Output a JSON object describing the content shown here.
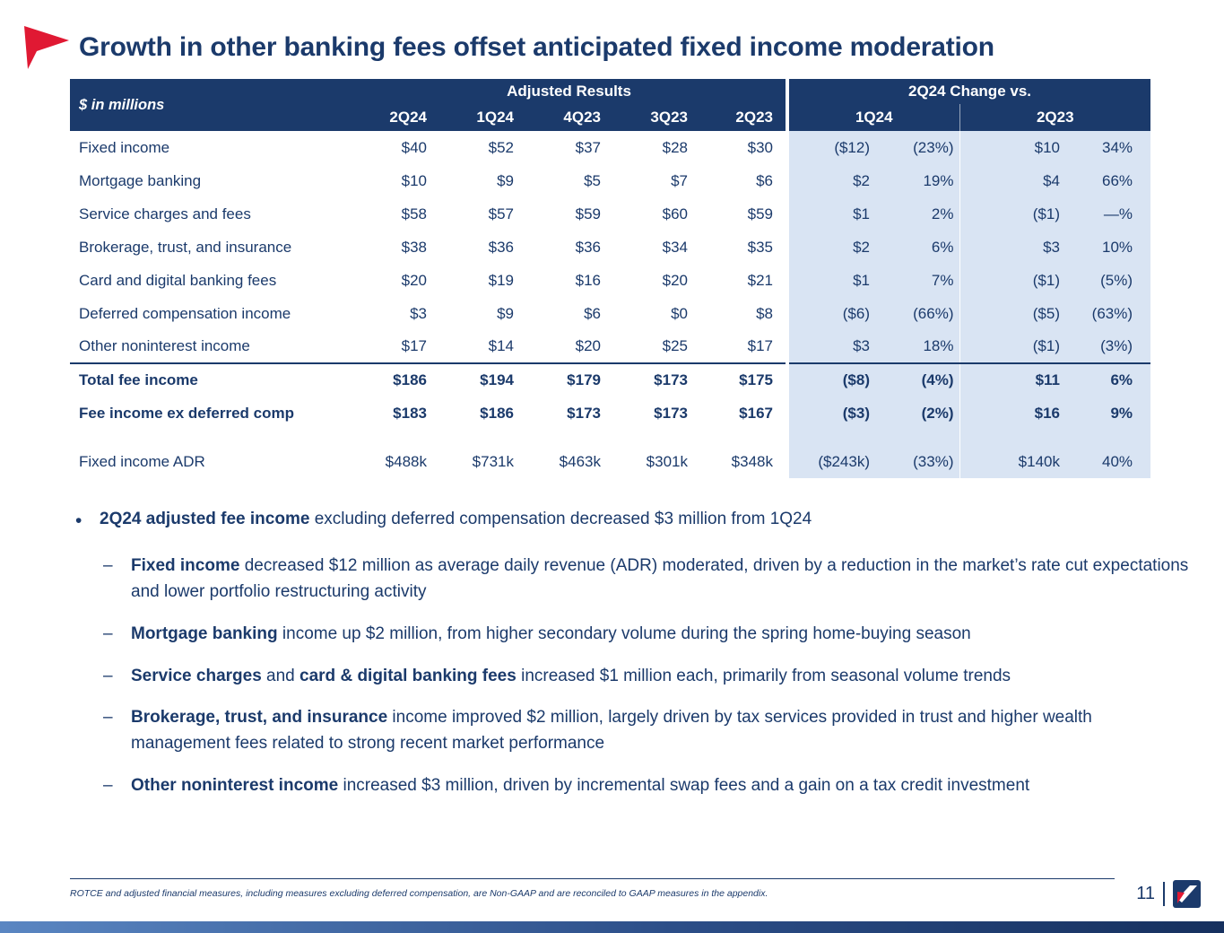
{
  "slide": {
    "title": "Growth in other banking fees offset anticipated fixed income moderation",
    "page_number": "11",
    "footnote": "ROTCE and adjusted financial measures, including measures excluding deferred compensation, are Non-GAAP and are reconciled to GAAP measures in the appendix."
  },
  "table": {
    "units_label": "$ in millions",
    "adjusted_header": "Adjusted Results",
    "change_header": "2Q24 Change vs.",
    "quarter_columns": [
      "2Q24",
      "1Q24",
      "4Q23",
      "3Q23",
      "2Q23"
    ],
    "change_groups": [
      "1Q24",
      "2Q23"
    ],
    "rows": [
      {
        "label": "Fixed income",
        "values": [
          "$40",
          "$52",
          "$37",
          "$28",
          "$30"
        ],
        "change": [
          "($12)",
          "(23%)",
          "$10",
          "34%"
        ]
      },
      {
        "label": "Mortgage banking",
        "values": [
          "$10",
          "$9",
          "$5",
          "$7",
          "$6"
        ],
        "change": [
          "$2",
          "19%",
          "$4",
          "66%"
        ]
      },
      {
        "label": "Service charges and fees",
        "values": [
          "$58",
          "$57",
          "$59",
          "$60",
          "$59"
        ],
        "change": [
          "$1",
          "2%",
          "($1)",
          "—%"
        ]
      },
      {
        "label": "Brokerage, trust, and insurance",
        "values": [
          "$38",
          "$36",
          "$36",
          "$34",
          "$35"
        ],
        "change": [
          "$2",
          "6%",
          "$3",
          "10%"
        ]
      },
      {
        "label": "Card and digital banking fees",
        "values": [
          "$20",
          "$19",
          "$16",
          "$20",
          "$21"
        ],
        "change": [
          "$1",
          "7%",
          "($1)",
          "(5%)"
        ]
      },
      {
        "label": "Deferred compensation income",
        "values": [
          "$3",
          "$9",
          "$6",
          "$0",
          "$8"
        ],
        "change": [
          "($6)",
          "(66%)",
          "($5)",
          "(63%)"
        ]
      },
      {
        "label": "Other noninterest income",
        "values": [
          "$17",
          "$14",
          "$20",
          "$25",
          "$17"
        ],
        "change": [
          "$3",
          "18%",
          "($1)",
          "(3%)"
        ]
      },
      {
        "label": "Total fee income",
        "values": [
          "$186",
          "$194",
          "$179",
          "$173",
          "$175"
        ],
        "change": [
          "($8)",
          "(4%)",
          "$11",
          "6%"
        ],
        "bold": true,
        "topBorder": true
      },
      {
        "label": "Fee income ex deferred comp",
        "values": [
          "$183",
          "$186",
          "$173",
          "$173",
          "$167"
        ],
        "change": [
          "($3)",
          "(2%)",
          "$16",
          "9%"
        ],
        "bold": true
      },
      {
        "label": "",
        "values": [
          "",
          "",
          "",
          "",
          ""
        ],
        "change": [
          "",
          "",
          "",
          ""
        ],
        "spacer": true
      },
      {
        "label": "Fixed income ADR",
        "values": [
          "$488k",
          "$731k",
          "$463k",
          "$301k",
          "$348k"
        ],
        "change": [
          "($243k)",
          "(33%)",
          "$140k",
          "40%"
        ]
      }
    ]
  },
  "bullets": [
    {
      "level": 1,
      "marker": "•",
      "segments": [
        {
          "text": "2Q24 adjusted fee income",
          "bold": true
        },
        {
          "text": " excluding deferred compensation decreased $3 million from 1Q24",
          "bold": false
        }
      ]
    },
    {
      "level": 2,
      "marker": "–",
      "segments": [
        {
          "text": "Fixed income",
          "bold": true
        },
        {
          "text": " decreased $12 million as average daily revenue (ADR) moderated, driven by a reduction in the market’s rate cut expectations and lower portfolio restructuring activity",
          "bold": false
        }
      ]
    },
    {
      "level": 2,
      "marker": "–",
      "segments": [
        {
          "text": "Mortgage banking",
          "bold": true
        },
        {
          "text": " income up $2 million, from higher secondary volume during the spring home-buying season",
          "bold": false
        }
      ]
    },
    {
      "level": 2,
      "marker": "–",
      "segments": [
        {
          "text": "Service charges",
          "bold": true
        },
        {
          "text": " and ",
          "bold": false
        },
        {
          "text": "card & digital banking fees",
          "bold": true
        },
        {
          "text": " increased $1 million each, primarily from seasonal volume trends",
          "bold": false
        }
      ]
    },
    {
      "level": 2,
      "marker": "–",
      "segments": [
        {
          "text": "Brokerage, trust, and insurance",
          "bold": true
        },
        {
          "text": " income improved $2 million, largely driven by tax services provided in trust and higher wealth management fees related to strong recent market performance",
          "bold": false
        }
      ]
    },
    {
      "level": 2,
      "marker": "–",
      "segments": [
        {
          "text": "Other noninterest income",
          "bold": true
        },
        {
          "text": " increased $3 million, driven by incremental swap fees and a gain on a tax credit investment",
          "bold": false
        }
      ]
    }
  ],
  "colors": {
    "navy": "#1B3A6B",
    "light_blue": "#D9E4F3",
    "red": "#E01933"
  }
}
